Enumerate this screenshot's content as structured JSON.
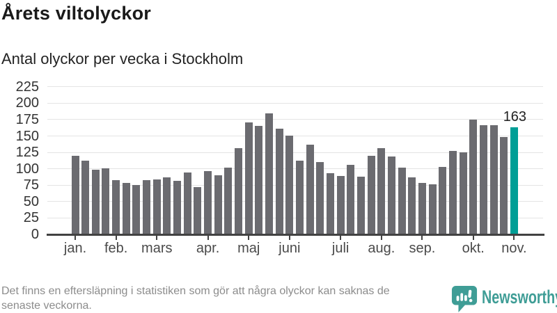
{
  "header": {
    "title": "Årets viltolyckor",
    "subtitle": "Antal olyckor per vecka i Stockholm"
  },
  "chart_data": {
    "type": "bar",
    "title": "Årets viltolyckor",
    "subtitle": "Antal olyckor per vecka i Stockholm",
    "description": "weekly wildlife accidents, one bar per week from January to early November",
    "values": [
      120,
      112,
      99,
      101,
      83,
      79,
      75,
      83,
      84,
      87,
      82,
      94,
      72,
      97,
      90,
      102,
      131,
      171,
      165,
      184,
      161,
      151,
      112,
      137,
      110,
      93,
      89,
      106,
      88,
      120,
      132,
      119,
      102,
      87,
      79,
      76,
      103,
      127,
      125,
      175,
      167,
      166,
      148,
      163
    ],
    "highlight_index": 43,
    "highlight_label": "163",
    "y_ticks": [
      0,
      25,
      50,
      75,
      100,
      125,
      150,
      175,
      200,
      225
    ],
    "ylim": [
      0,
      232
    ],
    "grid": "horizontal",
    "legend": "none",
    "month_ticks": [
      {
        "index": 0,
        "label": "jan."
      },
      {
        "index": 4,
        "label": "feb."
      },
      {
        "index": 8,
        "label": "mars"
      },
      {
        "index": 13,
        "label": "apr."
      },
      {
        "index": 17,
        "label": "maj"
      },
      {
        "index": 21,
        "label": "juni"
      },
      {
        "index": 26,
        "label": "juli"
      },
      {
        "index": 30,
        "label": "aug."
      },
      {
        "index": 34,
        "label": "sep."
      },
      {
        "index": 39,
        "label": "okt."
      },
      {
        "index": 43,
        "label": "nov."
      }
    ],
    "colors": {
      "bar": "#6b6b70",
      "highlight": "#009e96",
      "gridline": "#e4e4e4",
      "axis": "#424242"
    }
  },
  "footer": {
    "lines": [
      "Det finns en eftersläpning i statistiken som gör att några olyckor kan saknas de",
      "senaste veckorna."
    ],
    "brand": "Newsworthy",
    "brand_color": "#3f9d96"
  }
}
